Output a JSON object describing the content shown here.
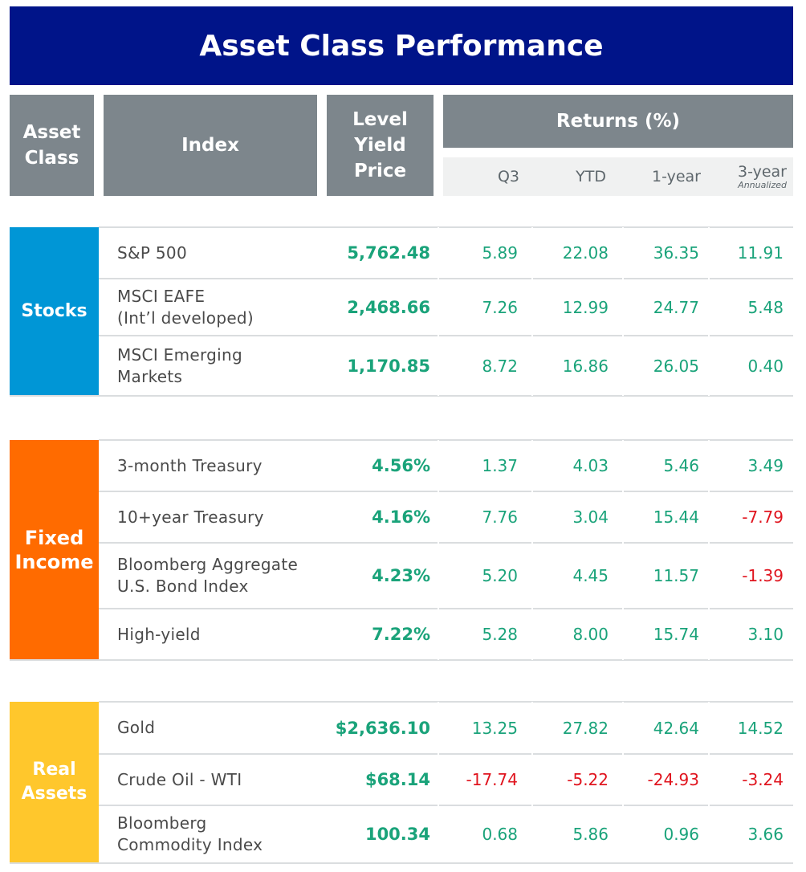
{
  "title": "Asset Class Performance",
  "headers": {
    "asset_class": "Asset Class",
    "index": "Index",
    "level_lines": [
      "Level",
      "Yield",
      "Price"
    ],
    "returns": "Returns (%)",
    "q3": "Q3",
    "ytd": "YTD",
    "one_year": "1-year",
    "three_year": "3-year",
    "three_year_note": "Annualized"
  },
  "groups": [
    {
      "label_lines": [
        "Stocks"
      ],
      "color": "#0096d6",
      "rows": [
        {
          "index_lines": [
            "S&P 500"
          ],
          "level": "5,762.48",
          "q3": "5.89",
          "ytd": "22.08",
          "one_year": "36.35",
          "three_year": "11.91"
        },
        {
          "index_lines": [
            "MSCI EAFE",
            "(Int’l developed)"
          ],
          "level": "2,468.66",
          "q3": "7.26",
          "ytd": "12.99",
          "one_year": "24.77",
          "three_year": "5.48"
        },
        {
          "index_lines": [
            "MSCI Emerging",
            "Markets"
          ],
          "level": "1,170.85",
          "q3": "8.72",
          "ytd": "16.86",
          "one_year": "26.05",
          "three_year": "0.40"
        }
      ]
    },
    {
      "label_lines": [
        "Fixed",
        "Income"
      ],
      "color": "#ff6b00",
      "rows": [
        {
          "index_lines": [
            "3-month Treasury"
          ],
          "level": "4.56%",
          "q3": "1.37",
          "ytd": "4.03",
          "one_year": "5.46",
          "three_year": "3.49"
        },
        {
          "index_lines": [
            "10+year Treasury"
          ],
          "level": "4.16%",
          "q3": "7.76",
          "ytd": "3.04",
          "one_year": "15.44",
          "three_year": "-7.79"
        },
        {
          "index_lines": [
            "Bloomberg Aggregate",
            "U.S. Bond Index"
          ],
          "level": "4.23%",
          "q3": "5.20",
          "ytd": "4.45",
          "one_year": "11.57",
          "three_year": "-1.39"
        },
        {
          "index_lines": [
            "High-yield"
          ],
          "level": "7.22%",
          "q3": "5.28",
          "ytd": "8.00",
          "one_year": "15.74",
          "three_year": "3.10"
        }
      ]
    },
    {
      "label_lines": [
        "Real",
        "Assets"
      ],
      "color": "#ffc72c",
      "rows": [
        {
          "index_lines": [
            "Gold"
          ],
          "level": "$2,636.10",
          "q3": "13.25",
          "ytd": "27.82",
          "one_year": "42.64",
          "three_year": "14.52"
        },
        {
          "index_lines": [
            "Crude Oil - WTI"
          ],
          "level": "$68.14",
          "q3": "-17.74",
          "ytd": "-5.22",
          "one_year": "-24.93",
          "three_year": "-3.24"
        },
        {
          "index_lines": [
            "Bloomberg",
            "Commodity Index"
          ],
          "level": "100.34",
          "q3": "0.68",
          "ytd": "5.86",
          "one_year": "0.96",
          "three_year": "3.66"
        }
      ]
    }
  ],
  "colors": {
    "title_bg": "#001489",
    "header_bg": "#7d868c",
    "positive": "#1aa37a",
    "negative": "#e0141e"
  }
}
